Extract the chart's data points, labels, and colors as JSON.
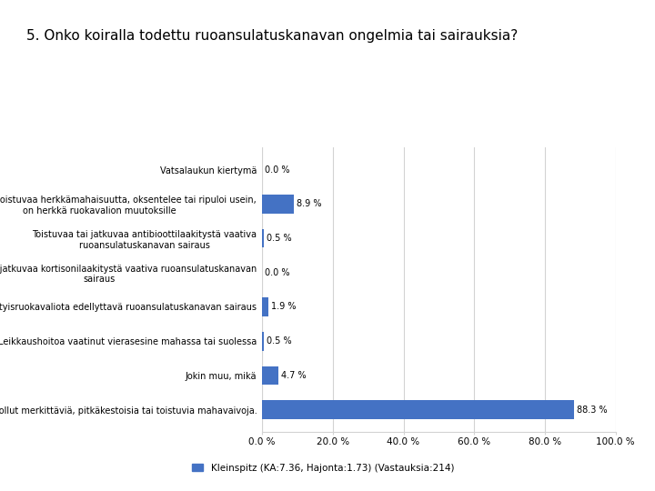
{
  "title": "5. Onko koiralla todettu ruoansulatuskanavan ongelmia tai sairauksia?",
  "categories": [
    "Koiralla ei ole ollut merkittäviä, pitkäkestoisia tai toistuvia mahavaivoja.",
    "Jokin muu, mikä",
    "Leikkaushoitoa vaatinut vierasesine mahassa tai suolessa",
    "Erityisruokavaliota edellyttavä ruoansulatuskanavan sairaus",
    "Toistuvaa tai jatkuvaa kortisonilaakitystä vaativa ruoansulatuskanavan\nsairaus",
    "Toistuvaa tai jatkuvaa antibioottilaakitystä vaativa\nruoansulatuskanavan sairaus",
    "Jatkuvaa tai toistuvaa herkkämahaisuutta, oksentelee tai ripuloi usein,\non herkkä ruokavalion muutoksille",
    "Vatsalaukun kiertymä"
  ],
  "values": [
    88.3,
    4.7,
    0.5,
    1.9,
    0.0,
    0.5,
    8.9,
    0.0
  ],
  "value_labels": [
    "88.3 %",
    "4.7 %",
    "0.5 %",
    "1.9 %",
    "0.0 %",
    "0.5 %",
    "8.9 %",
    "0.0 %"
  ],
  "bar_color": "#4472C4",
  "xlim": [
    0,
    100
  ],
  "xtick_labels": [
    "0.0 %",
    "20.0 %",
    "40.0 %",
    "60.0 %",
    "80.0 %",
    "100.0 %"
  ],
  "xtick_values": [
    0,
    20,
    40,
    60,
    80,
    100
  ],
  "legend_label": "Kleinspitz (KA:7.36, Hajonta:1.73) (Vastauksia:214)",
  "background_color": "#FFFFFF",
  "grid_color": "#D3D3D3",
  "title_fontsize": 11,
  "label_fontsize": 7,
  "value_fontsize": 7,
  "tick_fontsize": 7.5
}
